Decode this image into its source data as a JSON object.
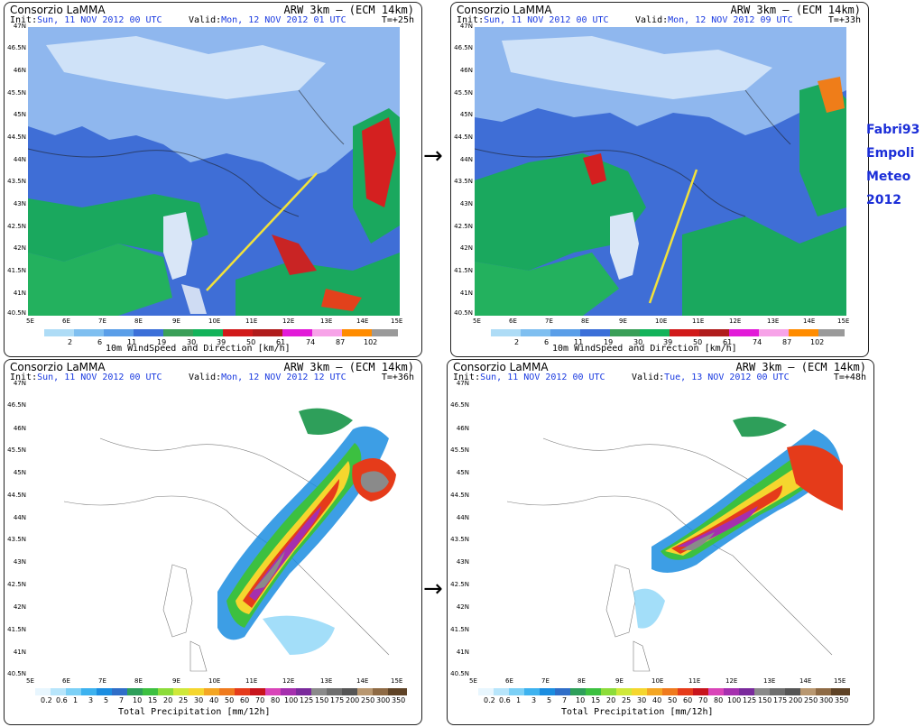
{
  "header": {
    "org": "Consorzio LaMMA",
    "model": "ARW 3km – (ECM 14km)",
    "init_label": "Init:",
    "valid_label": "Valid:"
  },
  "panels": [
    {
      "init": "Sun, 11 NOV 2012  00 UTC",
      "valid": "Mon, 12 NOV 2012  01 UTC",
      "step": "T=+25h"
    },
    {
      "init": "Sun, 11 NOV 2012  00 UTC",
      "valid": "Mon, 12 NOV 2012  09 UTC",
      "step": "T=+33h"
    },
    {
      "init": "Sun, 11 NOV 2012  00 UTC",
      "valid": "Mon, 12 NOV 2012  12 UTC",
      "step": "T=+36h"
    },
    {
      "init": "Sun, 11 NOV 2012  00 UTC",
      "valid": "Tue, 13 NOV 2012  00 UTC",
      "step": "T=+48h"
    }
  ],
  "lat_labels": [
    "47N",
    "46.5N",
    "46N",
    "45.5N",
    "45N",
    "44.5N",
    "44N",
    "43.5N",
    "43N",
    "42.5N",
    "42N",
    "41.5N",
    "41N",
    "40.5N"
  ],
  "lon_labels": [
    "5E",
    "6E",
    "7E",
    "8E",
    "9E",
    "10E",
    "11E",
    "12E",
    "13E",
    "14E",
    "15E"
  ],
  "wind_bar": {
    "title": "10m WindSpeed and Direction [km/h]",
    "values": [
      "2",
      "6",
      "11",
      "19",
      "30",
      "39",
      "50",
      "61",
      "74",
      "87",
      "102"
    ],
    "colors": [
      "#aedcf6",
      "#7fbff0",
      "#5a9ee8",
      "#3b6fd8",
      "#3a9f58",
      "#13b35a",
      "#d11a1a",
      "#b01c1c",
      "#e21ad8",
      "#f7a3e8",
      "#ff8c00",
      "#9a9a9a"
    ]
  },
  "precip_bar": {
    "title": "Total Precipitation [mm/12h]",
    "values": [
      "0.2",
      "0.6",
      "1",
      "3",
      "5",
      "7",
      "10",
      "15",
      "20",
      "25",
      "30",
      "40",
      "50",
      "60",
      "70",
      "80",
      "100",
      "125",
      "150",
      "175",
      "200",
      "250",
      "300",
      "350"
    ],
    "colors": [
      "#e8f6fe",
      "#b7e5fb",
      "#7cd0f6",
      "#3db2ef",
      "#1b8de0",
      "#2f6ec8",
      "#2e9f5a",
      "#3cc040",
      "#8cdc3a",
      "#cfe83a",
      "#f5d62e",
      "#f4a623",
      "#ef7a1d",
      "#e53b1a",
      "#c8141c",
      "#d944b8",
      "#a52fae",
      "#7a2a9c",
      "#8a8a8a",
      "#6e6e6e",
      "#555555",
      "#b89770",
      "#8e6a44",
      "#5f4326"
    ]
  },
  "signature": [
    "Fabri93",
    "Empoli",
    "Meteo",
    "2012"
  ]
}
